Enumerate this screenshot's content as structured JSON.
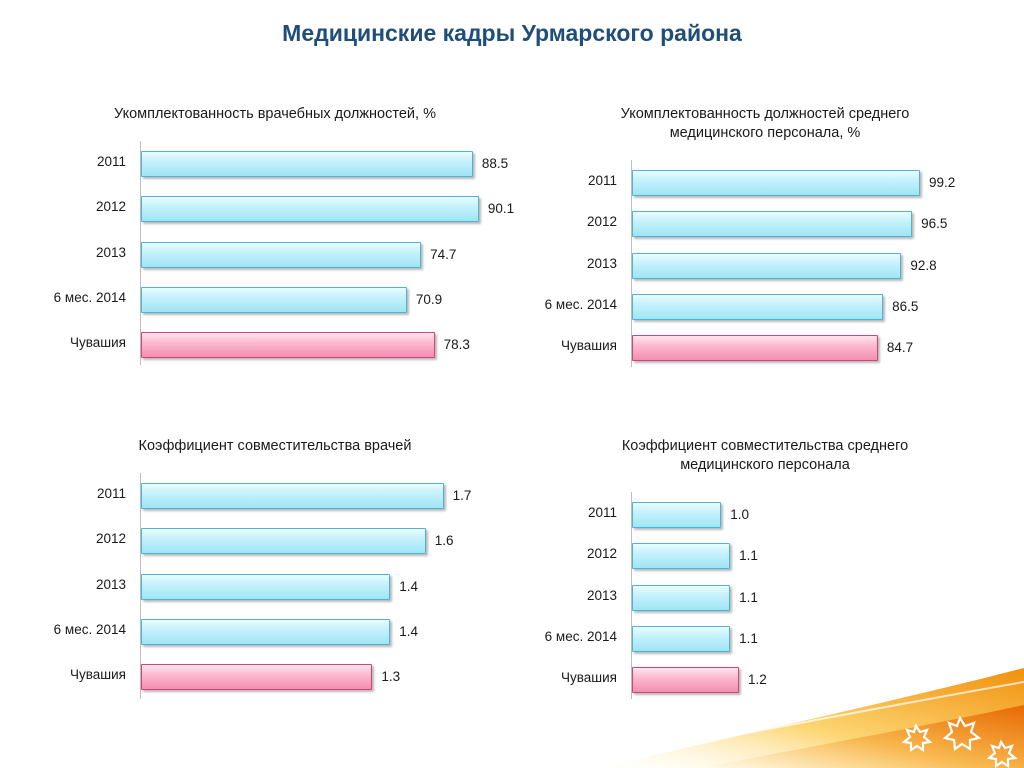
{
  "title": "Медицинские кадры Урмарского района",
  "chart_data": [
    {
      "type": "bar",
      "orientation": "horizontal",
      "title": "Укомплектованность врачебных должностей, %",
      "categories": [
        "2011",
        "2012",
        "2013",
        "6 мес. 2014",
        "Чувашия"
      ],
      "values": [
        88.5,
        90.1,
        74.7,
        70.9,
        78.3
      ],
      "value_labels": [
        "88.5",
        "90.1",
        "74.7",
        "70.9",
        "78.3"
      ],
      "highlight_index": 4
    },
    {
      "type": "bar",
      "orientation": "horizontal",
      "title": "Укомплектованность должностей среднего медицинского персонала, %",
      "title_lines": [
        "Укомплектованность должностей среднего",
        "медицинского персонала, %"
      ],
      "categories": [
        "2011",
        "2012",
        "2013",
        "6 мес. 2014",
        "Чувашия"
      ],
      "values": [
        99.2,
        96.5,
        92.8,
        86.5,
        84.7
      ],
      "value_labels": [
        "99.2",
        "96.5",
        "92.8",
        "86.5",
        "84.7"
      ],
      "highlight_index": 4
    },
    {
      "type": "bar",
      "orientation": "horizontal",
      "title": "Коэффициент совместительства врачей",
      "categories": [
        "2011",
        "2012",
        "2013",
        "6 мес. 2014",
        "Чувашия"
      ],
      "values": [
        1.7,
        1.6,
        1.4,
        1.4,
        1.3
      ],
      "value_labels": [
        "1.7",
        "1.6",
        "1.4",
        "1.4",
        "1.3"
      ],
      "highlight_index": 4
    },
    {
      "type": "bar",
      "orientation": "horizontal",
      "title": "Коэффициент совместительства среднего медицинского персонала",
      "title_lines": [
        "Коэффициент совместительства среднего",
        "медицинского персонала"
      ],
      "categories": [
        "2011",
        "2012",
        "2013",
        "6 мес. 2014",
        "Чувашия"
      ],
      "values": [
        1.0,
        1.1,
        1.1,
        1.1,
        1.2
      ],
      "value_labels": [
        "1.0",
        "1.1",
        "1.1",
        "1.1",
        "1.2"
      ],
      "highlight_index": 4
    }
  ],
  "colors": {
    "title": "#1f4e79",
    "bar_blue": "#9fe5f6",
    "bar_pink": "#f48eb0",
    "swoosh_orange": "#f39200",
    "swoosh_yellow": "#fcd34d"
  }
}
